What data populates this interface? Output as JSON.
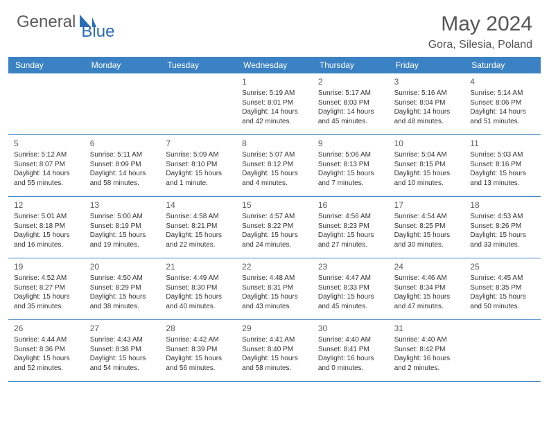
{
  "logo": {
    "text1": "General",
    "text2": "Blue",
    "general_color": "#5a5a5a",
    "blue_color": "#2a6db5",
    "icon_color": "#2a6db5"
  },
  "header": {
    "month_title": "May 2024",
    "location": "Gora, Silesia, Poland",
    "title_color": "#555555"
  },
  "colors": {
    "header_bg": "#3b82c4",
    "header_text": "#ffffff",
    "border": "#3b82c4",
    "cell_text": "#333333",
    "daynum_color": "#5a5a5a",
    "background": "#ffffff"
  },
  "day_headers": [
    "Sunday",
    "Monday",
    "Tuesday",
    "Wednesday",
    "Thursday",
    "Friday",
    "Saturday"
  ],
  "weeks": [
    [
      {
        "empty": true
      },
      {
        "empty": true
      },
      {
        "empty": true
      },
      {
        "num": "1",
        "sunrise": "Sunrise: 5:19 AM",
        "sunset": "Sunset: 8:01 PM",
        "daylight": "Daylight: 14 hours and 42 minutes."
      },
      {
        "num": "2",
        "sunrise": "Sunrise: 5:17 AM",
        "sunset": "Sunset: 8:03 PM",
        "daylight": "Daylight: 14 hours and 45 minutes."
      },
      {
        "num": "3",
        "sunrise": "Sunrise: 5:16 AM",
        "sunset": "Sunset: 8:04 PM",
        "daylight": "Daylight: 14 hours and 48 minutes."
      },
      {
        "num": "4",
        "sunrise": "Sunrise: 5:14 AM",
        "sunset": "Sunset: 8:06 PM",
        "daylight": "Daylight: 14 hours and 51 minutes."
      }
    ],
    [
      {
        "num": "5",
        "sunrise": "Sunrise: 5:12 AM",
        "sunset": "Sunset: 8:07 PM",
        "daylight": "Daylight: 14 hours and 55 minutes."
      },
      {
        "num": "6",
        "sunrise": "Sunrise: 5:11 AM",
        "sunset": "Sunset: 8:09 PM",
        "daylight": "Daylight: 14 hours and 58 minutes."
      },
      {
        "num": "7",
        "sunrise": "Sunrise: 5:09 AM",
        "sunset": "Sunset: 8:10 PM",
        "daylight": "Daylight: 15 hours and 1 minute."
      },
      {
        "num": "8",
        "sunrise": "Sunrise: 5:07 AM",
        "sunset": "Sunset: 8:12 PM",
        "daylight": "Daylight: 15 hours and 4 minutes."
      },
      {
        "num": "9",
        "sunrise": "Sunrise: 5:06 AM",
        "sunset": "Sunset: 8:13 PM",
        "daylight": "Daylight: 15 hours and 7 minutes."
      },
      {
        "num": "10",
        "sunrise": "Sunrise: 5:04 AM",
        "sunset": "Sunset: 8:15 PM",
        "daylight": "Daylight: 15 hours and 10 minutes."
      },
      {
        "num": "11",
        "sunrise": "Sunrise: 5:03 AM",
        "sunset": "Sunset: 8:16 PM",
        "daylight": "Daylight: 15 hours and 13 minutes."
      }
    ],
    [
      {
        "num": "12",
        "sunrise": "Sunrise: 5:01 AM",
        "sunset": "Sunset: 8:18 PM",
        "daylight": "Daylight: 15 hours and 16 minutes."
      },
      {
        "num": "13",
        "sunrise": "Sunrise: 5:00 AM",
        "sunset": "Sunset: 8:19 PM",
        "daylight": "Daylight: 15 hours and 19 minutes."
      },
      {
        "num": "14",
        "sunrise": "Sunrise: 4:58 AM",
        "sunset": "Sunset: 8:21 PM",
        "daylight": "Daylight: 15 hours and 22 minutes."
      },
      {
        "num": "15",
        "sunrise": "Sunrise: 4:57 AM",
        "sunset": "Sunset: 8:22 PM",
        "daylight": "Daylight: 15 hours and 24 minutes."
      },
      {
        "num": "16",
        "sunrise": "Sunrise: 4:56 AM",
        "sunset": "Sunset: 8:23 PM",
        "daylight": "Daylight: 15 hours and 27 minutes."
      },
      {
        "num": "17",
        "sunrise": "Sunrise: 4:54 AM",
        "sunset": "Sunset: 8:25 PM",
        "daylight": "Daylight: 15 hours and 30 minutes."
      },
      {
        "num": "18",
        "sunrise": "Sunrise: 4:53 AM",
        "sunset": "Sunset: 8:26 PM",
        "daylight": "Daylight: 15 hours and 33 minutes."
      }
    ],
    [
      {
        "num": "19",
        "sunrise": "Sunrise: 4:52 AM",
        "sunset": "Sunset: 8:27 PM",
        "daylight": "Daylight: 15 hours and 35 minutes."
      },
      {
        "num": "20",
        "sunrise": "Sunrise: 4:50 AM",
        "sunset": "Sunset: 8:29 PM",
        "daylight": "Daylight: 15 hours and 38 minutes."
      },
      {
        "num": "21",
        "sunrise": "Sunrise: 4:49 AM",
        "sunset": "Sunset: 8:30 PM",
        "daylight": "Daylight: 15 hours and 40 minutes."
      },
      {
        "num": "22",
        "sunrise": "Sunrise: 4:48 AM",
        "sunset": "Sunset: 8:31 PM",
        "daylight": "Daylight: 15 hours and 43 minutes."
      },
      {
        "num": "23",
        "sunrise": "Sunrise: 4:47 AM",
        "sunset": "Sunset: 8:33 PM",
        "daylight": "Daylight: 15 hours and 45 minutes."
      },
      {
        "num": "24",
        "sunrise": "Sunrise: 4:46 AM",
        "sunset": "Sunset: 8:34 PM",
        "daylight": "Daylight: 15 hours and 47 minutes."
      },
      {
        "num": "25",
        "sunrise": "Sunrise: 4:45 AM",
        "sunset": "Sunset: 8:35 PM",
        "daylight": "Daylight: 15 hours and 50 minutes."
      }
    ],
    [
      {
        "num": "26",
        "sunrise": "Sunrise: 4:44 AM",
        "sunset": "Sunset: 8:36 PM",
        "daylight": "Daylight: 15 hours and 52 minutes."
      },
      {
        "num": "27",
        "sunrise": "Sunrise: 4:43 AM",
        "sunset": "Sunset: 8:38 PM",
        "daylight": "Daylight: 15 hours and 54 minutes."
      },
      {
        "num": "28",
        "sunrise": "Sunrise: 4:42 AM",
        "sunset": "Sunset: 8:39 PM",
        "daylight": "Daylight: 15 hours and 56 minutes."
      },
      {
        "num": "29",
        "sunrise": "Sunrise: 4:41 AM",
        "sunset": "Sunset: 8:40 PM",
        "daylight": "Daylight: 15 hours and 58 minutes."
      },
      {
        "num": "30",
        "sunrise": "Sunrise: 4:40 AM",
        "sunset": "Sunset: 8:41 PM",
        "daylight": "Daylight: 16 hours and 0 minutes."
      },
      {
        "num": "31",
        "sunrise": "Sunrise: 4:40 AM",
        "sunset": "Sunset: 8:42 PM",
        "daylight": "Daylight: 16 hours and 2 minutes."
      },
      {
        "empty": true
      }
    ]
  ]
}
